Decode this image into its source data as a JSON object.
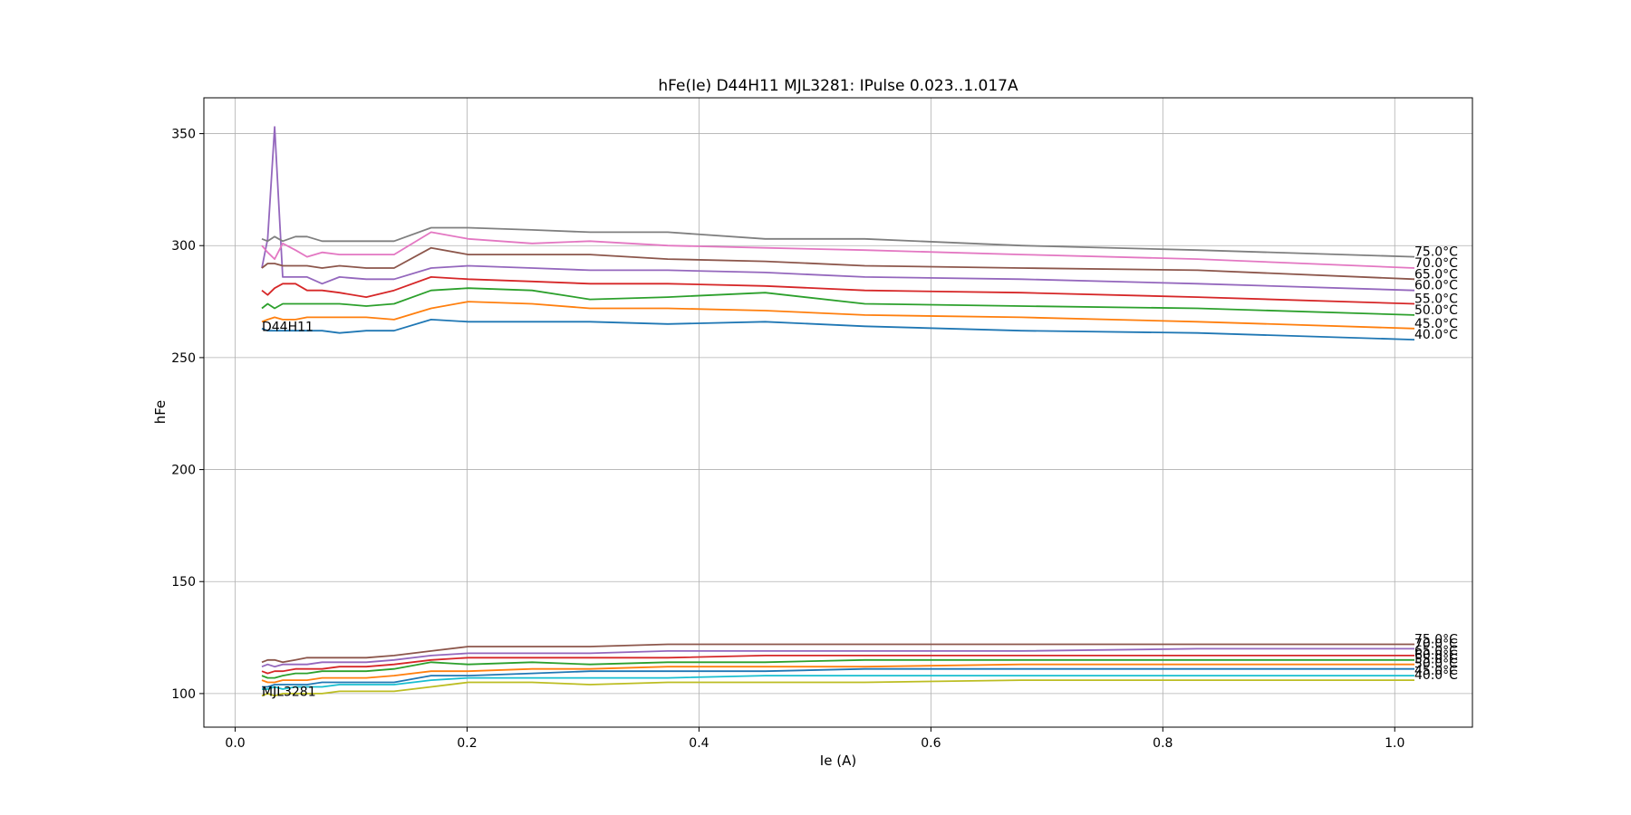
{
  "chart_data": {
    "type": "line",
    "title": "hFe(Ie) D44H11 MJL3281: IPulse 0.023..1.017A",
    "xlabel": "Ie (A)",
    "ylabel": "hFe",
    "xlim": [
      -0.027,
      1.067
    ],
    "ylim": [
      85,
      366
    ],
    "xticks": [
      0.0,
      0.2,
      0.4,
      0.6,
      0.8,
      1.0
    ],
    "xtick_labels": [
      "0.0",
      "0.2",
      "0.4",
      "0.6",
      "0.8",
      "1.0"
    ],
    "yticks": [
      100,
      150,
      200,
      250,
      300,
      350
    ],
    "ytick_labels": [
      "100",
      "150",
      "200",
      "250",
      "300",
      "350"
    ],
    "grid": true,
    "group_labels": [
      {
        "text": "D44H11",
        "x": 0.023,
        "y": 264
      },
      {
        "text": "MJL3281",
        "x": 0.023,
        "y": 101
      }
    ],
    "groups": [
      {
        "name": "D44H11",
        "x": [
          0.023,
          0.028,
          0.034,
          0.041,
          0.052,
          0.062,
          0.075,
          0.09,
          0.113,
          0.137,
          0.169,
          0.201,
          0.256,
          0.306,
          0.373,
          0.457,
          0.543,
          0.678,
          0.83,
          1.017
        ],
        "series": [
          {
            "name": "40.0°C",
            "label": "40.0°C",
            "color": "#1f77b4",
            "values": [
              263,
              262,
              262,
              262,
              262,
              262,
              262,
              261,
              262,
              262,
              267,
              266,
              266,
              266,
              265,
              266,
              264,
              262,
              261,
              258
            ]
          },
          {
            "name": "45.0°C",
            "label": "45.0°C",
            "color": "#ff7f0e",
            "values": [
              266,
              267,
              268,
              267,
              267,
              268,
              268,
              268,
              268,
              267,
              272,
              275,
              274,
              272,
              272,
              271,
              269,
              268,
              266,
              263
            ]
          },
          {
            "name": "50.0°C",
            "label": "50.0°C",
            "color": "#2ca02c",
            "values": [
              272,
              274,
              272,
              274,
              274,
              274,
              274,
              274,
              273,
              274,
              280,
              281,
              280,
              276,
              277,
              279,
              274,
              273,
              272,
              269
            ]
          },
          {
            "name": "55.0°C",
            "label": "55.0°C",
            "color": "#d62728",
            "values": [
              280,
              278,
              281,
              283,
              283,
              280,
              280,
              279,
              277,
              280,
              286,
              285,
              284,
              283,
              283,
              282,
              280,
              279,
              277,
              274
            ]
          },
          {
            "name": "60.0°C",
            "label": "60.0°C",
            "color": "#9467bd",
            "values": [
              290,
              303,
              353,
              286,
              286,
              286,
              283,
              286,
              285,
              285,
              290,
              291,
              290,
              289,
              289,
              288,
              286,
              285,
              283,
              280
            ]
          },
          {
            "name": "65.0°C",
            "label": "65.0°C",
            "color": "#8c564b",
            "values": [
              290,
              292,
              292,
              291,
              291,
              291,
              290,
              291,
              290,
              290,
              299,
              296,
              296,
              296,
              294,
              293,
              291,
              290,
              289,
              285
            ]
          },
          {
            "name": "70.0°C",
            "label": "70.0°C",
            "color": "#e377c2",
            "values": [
              300,
              297,
              294,
              301,
              298,
              295,
              297,
              296,
              296,
              296,
              306,
              303,
              301,
              302,
              300,
              299,
              298,
              296,
              294,
              290
            ]
          },
          {
            "name": "75.0°C",
            "label": "75.0°C",
            "color": "#7f7f7f",
            "values": [
              303,
              302,
              304,
              302,
              304,
              304,
              302,
              302,
              302,
              302,
              308,
              308,
              307,
              306,
              306,
              303,
              303,
              300,
              298,
              295
            ]
          }
        ]
      },
      {
        "name": "MJL3281",
        "x": [
          0.023,
          0.028,
          0.034,
          0.041,
          0.052,
          0.062,
          0.075,
          0.09,
          0.113,
          0.137,
          0.169,
          0.201,
          0.256,
          0.306,
          0.373,
          0.457,
          0.543,
          0.678,
          0.83,
          1.017
        ],
        "series": [
          {
            "name": "40.0°C",
            "label": "40.0°C",
            "color": "#bcbd22",
            "values": [
              99,
              100,
              99,
              100,
              100,
              100,
              100,
              101,
              101,
              101,
              103,
              105,
              105,
              104,
              105,
              105,
              105,
              106,
              106,
              106
            ]
          },
          {
            "name": "45.0°C",
            "label": "45.0°C",
            "color": "#17becf",
            "values": [
              102,
              102,
              103,
              102,
              103,
              103,
              103,
              104,
              104,
              104,
              106,
              107,
              107,
              107,
              107,
              108,
              108,
              108,
              108,
              108
            ]
          },
          {
            "name": "50.0°C",
            "label": "50.0°C",
            "color": "#1f77b4",
            "values": [
              103,
              103,
              104,
              104,
              104,
              104,
              105,
              105,
              105,
              105,
              108,
              108,
              109,
              110,
              110,
              110,
              111,
              111,
              111,
              111
            ]
          },
          {
            "name": "55.0°C",
            "label": "55.0°C",
            "color": "#ff7f0e",
            "values": [
              106,
              105,
              105,
              106,
              106,
              106,
              107,
              107,
              107,
              108,
              110,
              110,
              111,
              111,
              112,
              112,
              112,
              113,
              113,
              113
            ]
          },
          {
            "name": "60.0°C",
            "label": "60.0°C",
            "color": "#2ca02c",
            "values": [
              108,
              107,
              107,
              108,
              109,
              109,
              110,
              110,
              110,
              111,
              114,
              113,
              114,
              113,
              114,
              114,
              115,
              115,
              115,
              115
            ]
          },
          {
            "name": "65.0°C",
            "label": "65.0°C",
            "color": "#d62728",
            "values": [
              110,
              109,
              110,
              110,
              111,
              111,
              111,
              112,
              112,
              113,
              115,
              116,
              116,
              116,
              116,
              117,
              117,
              117,
              117,
              117
            ]
          },
          {
            "name": "70.0°C",
            "label": "70.0°C",
            "color": "#9467bd",
            "values": [
              112,
              113,
              112,
              113,
              113,
              113,
              114,
              114,
              114,
              115,
              117,
              118,
              118,
              118,
              119,
              119,
              119,
              119,
              120,
              120
            ]
          },
          {
            "name": "75.0°C",
            "label": "75.0°C",
            "color": "#8c564b",
            "values": [
              114,
              115,
              115,
              114,
              115,
              116,
              116,
              116,
              116,
              117,
              119,
              121,
              121,
              121,
              122,
              122,
              122,
              122,
              122,
              122
            ]
          }
        ]
      }
    ]
  }
}
